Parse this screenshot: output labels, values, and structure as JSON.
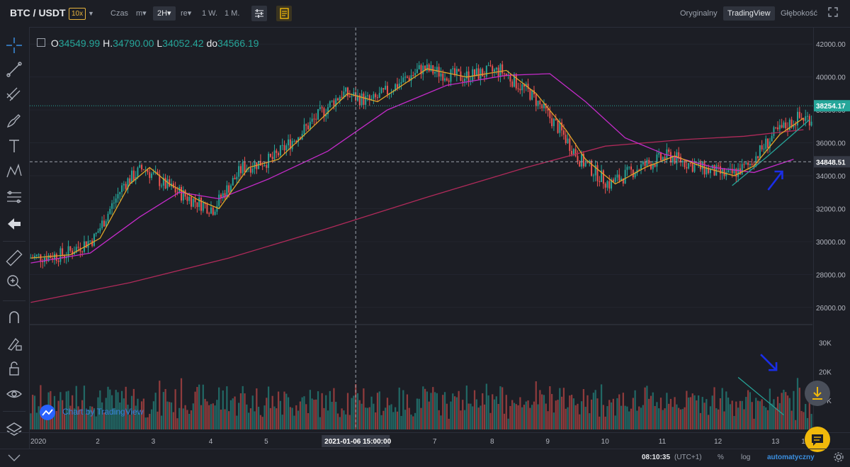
{
  "header": {
    "pair": "BTC / USDT",
    "leverage": "10x",
    "time_label": "Czas",
    "interval_minutes": "m▾",
    "interval_active": "2H▾",
    "interval_other": "re▾",
    "interval_week": "1 W.",
    "interval_month": "1 M.",
    "views": [
      "Oryginalny",
      "TradingView",
      "Głębokość"
    ],
    "active_view": "TradingView"
  },
  "ohlc": {
    "o_label": "O",
    "o": "34549.99",
    "h_label": "H.",
    "h": "34790.00",
    "l_label": "L",
    "l": "34052.42",
    "c_label": "do",
    "c": "34566.19"
  },
  "price_axis": {
    "ticks": [
      "42000.00",
      "40000.00",
      "38000.00",
      "36000.00",
      "34000.00",
      "32000.00",
      "30000.00",
      "28000.00",
      "26000.00"
    ],
    "current_price": "38254.17",
    "crosshair_price": "34848.51"
  },
  "volume_axis": {
    "ticks": [
      "30K",
      "20K",
      "10K"
    ]
  },
  "time_axis": {
    "labels": [
      "2020",
      "2",
      "3",
      "4",
      "5",
      "7",
      "8",
      "9",
      "10",
      "11",
      "12",
      "13",
      "14"
    ],
    "crosshair_time": "2021-01-06 15:00:00"
  },
  "watermark": "Chart by TradingView",
  "bottom_bar": {
    "clock": "08:10:35",
    "timezone": "(UTC+1)",
    "percent": "%",
    "log": "log",
    "auto": "automatyczny"
  },
  "colors": {
    "up": "#26a69a",
    "down": "#ef5350",
    "ma_fast": "#e0a528",
    "ma_mid": "#c42bc9",
    "ma_slow": "#b02a5a",
    "annotation_arrow": "#1a2ee8",
    "accent": "#f0b90b"
  },
  "chart_data": {
    "type": "candlestick",
    "range_start": "2020",
    "range_end": "14",
    "ylim": [
      25000,
      43000
    ],
    "volume_ylim": [
      0,
      36000
    ],
    "ma_fast": [
      [
        0,
        29000
      ],
      [
        20,
        29200
      ],
      [
        35,
        30200
      ],
      [
        50,
        33500
      ],
      [
        60,
        34500
      ],
      [
        70,
        33500
      ],
      [
        85,
        32500
      ],
      [
        95,
        32000
      ],
      [
        110,
        34500
      ],
      [
        125,
        35000
      ],
      [
        140,
        36700
      ],
      [
        160,
        39000
      ],
      [
        175,
        38500
      ],
      [
        200,
        40500
      ],
      [
        220,
        40000
      ],
      [
        240,
        40400
      ],
      [
        255,
        39000
      ],
      [
        270,
        36800
      ],
      [
        280,
        35000
      ],
      [
        295,
        33500
      ],
      [
        310,
        34500
      ],
      [
        325,
        35200
      ],
      [
        340,
        34500
      ],
      [
        355,
        34000
      ],
      [
        365,
        34600
      ],
      [
        378,
        36500
      ],
      [
        390,
        37500
      ]
    ],
    "ma_mid": [
      [
        0,
        28700
      ],
      [
        30,
        29300
      ],
      [
        55,
        31500
      ],
      [
        75,
        33000
      ],
      [
        95,
        32600
      ],
      [
        120,
        33800
      ],
      [
        150,
        35500
      ],
      [
        180,
        38000
      ],
      [
        210,
        39500
      ],
      [
        240,
        40100
      ],
      [
        262,
        40200
      ],
      [
        280,
        38500
      ],
      [
        300,
        36300
      ],
      [
        320,
        35300
      ],
      [
        345,
        34500
      ],
      [
        365,
        34200
      ],
      [
        385,
        35000
      ]
    ],
    "ma_slow": [
      [
        0,
        26300
      ],
      [
        50,
        27500
      ],
      [
        100,
        29000
      ],
      [
        150,
        30800
      ],
      [
        200,
        32700
      ],
      [
        250,
        34500
      ],
      [
        290,
        35800
      ],
      [
        330,
        36200
      ],
      [
        360,
        36400
      ],
      [
        390,
        36800
      ]
    ],
    "trend_up_line": [
      [
        354,
        33400
      ],
      [
        372,
        35200
      ],
      [
        393,
        37400
      ]
    ],
    "trend_volume_line": [
      [
        357,
        18000
      ],
      [
        380,
        5000
      ]
    ],
    "annotations": [
      {
        "type": "arrow-up-right",
        "at_bar": 375,
        "price": 34000
      },
      {
        "type": "arrow-down-right",
        "at_bar": 372,
        "volume": 22000
      }
    ]
  }
}
